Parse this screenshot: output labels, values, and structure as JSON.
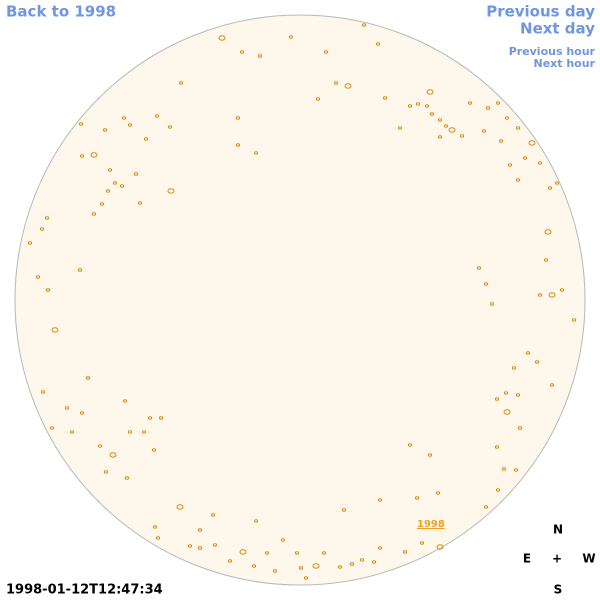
{
  "nav": {
    "back": "Back to 1998",
    "previous_day": "Previous day",
    "next_day": "Next day",
    "previous_hour": "Previous hour",
    "next_hour": "Next hour"
  },
  "map": {
    "year_label": "1998",
    "timestamp": "1998-01-12T12:47:34"
  },
  "compass": {
    "north": "N",
    "east": "E",
    "center": "+",
    "west": "W",
    "south": "S"
  }
}
